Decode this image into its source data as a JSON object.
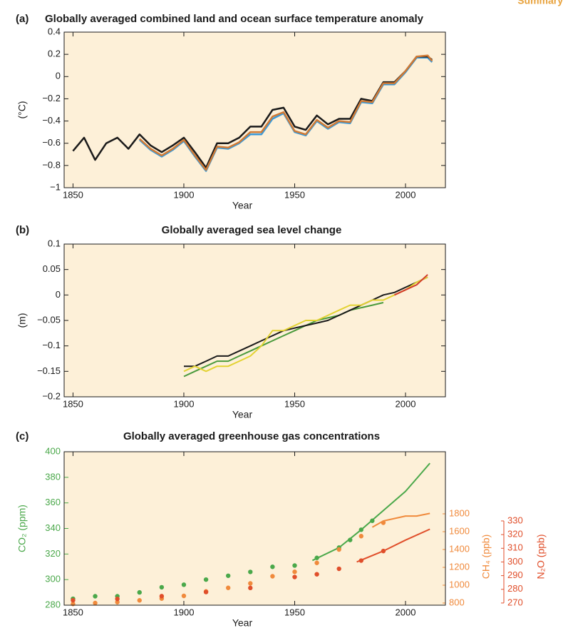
{
  "section_label": "Summary",
  "chart_data": [
    {
      "type": "line",
      "panel_label": "(a)",
      "title": "Globally averaged combined land and ocean surface temperature anomaly",
      "x_label": "Year",
      "y_label": "(°C)",
      "xlim": [
        1846,
        2018
      ],
      "xticks": [
        1850,
        1900,
        1950,
        2000
      ],
      "ylim": [
        -1,
        0.4
      ],
      "yticks": [
        {
          "value": -1,
          "label": "−1"
        },
        {
          "value": -0.8,
          "label": "−0.8"
        },
        {
          "value": -0.6,
          "label": "−0.6"
        },
        {
          "value": -0.4,
          "label": "−0.4"
        },
        {
          "value": -0.2,
          "label": "−0.2"
        },
        0,
        0.2,
        0.4
      ],
      "x": [
        1850,
        1855,
        1860,
        1865,
        1870,
        1875,
        1880,
        1885,
        1890,
        1895,
        1900,
        1905,
        1910,
        1915,
        1920,
        1925,
        1930,
        1935,
        1940,
        1945,
        1950,
        1955,
        1960,
        1965,
        1970,
        1975,
        1980,
        1985,
        1990,
        1995,
        2000,
        2005,
        2010,
        2012
      ],
      "series": [
        {
          "color": "#3a9ad9",
          "values": [
            null,
            null,
            null,
            null,
            null,
            null,
            -0.57,
            -0.66,
            -0.72,
            -0.66,
            -0.58,
            -0.72,
            -0.85,
            -0.64,
            -0.65,
            -0.6,
            -0.52,
            -0.52,
            -0.38,
            -0.33,
            -0.5,
            -0.53,
            -0.4,
            -0.47,
            -0.41,
            -0.42,
            -0.23,
            -0.24,
            -0.07,
            -0.07,
            0.04,
            0.17,
            0.17,
            0.13
          ]
        },
        {
          "color": "#1a1a1a",
          "values": [
            -0.67,
            -0.55,
            -0.75,
            -0.6,
            -0.55,
            -0.65,
            -0.52,
            -0.62,
            -0.68,
            -0.62,
            -0.55,
            -0.68,
            -0.82,
            -0.6,
            -0.6,
            -0.55,
            -0.45,
            -0.45,
            -0.3,
            -0.28,
            -0.45,
            -0.48,
            -0.35,
            -0.43,
            -0.38,
            -0.38,
            -0.2,
            -0.22,
            -0.05,
            -0.05,
            0.05,
            0.18,
            0.18,
            0.15
          ]
        },
        {
          "color": "#d07a35",
          "values": [
            null,
            null,
            null,
            null,
            null,
            null,
            -0.56,
            -0.65,
            -0.71,
            -0.65,
            -0.57,
            -0.71,
            -0.84,
            -0.63,
            -0.64,
            -0.59,
            -0.5,
            -0.5,
            -0.36,
            -0.32,
            -0.49,
            -0.52,
            -0.39,
            -0.46,
            -0.4,
            -0.41,
            -0.22,
            -0.23,
            -0.06,
            -0.06,
            0.05,
            0.18,
            0.19,
            0.14
          ]
        }
      ]
    },
    {
      "type": "line",
      "panel_label": "(b)",
      "title": "Globally averaged sea level change",
      "x_label": "Year",
      "y_label": "(m)",
      "xlim": [
        1846,
        2018
      ],
      "xticks": [
        1850,
        1900,
        1950,
        2000
      ],
      "ylim": [
        -0.2,
        0.1
      ],
      "yticks": [
        {
          "value": -0.2,
          "label": "−0.2"
        },
        {
          "value": -0.15,
          "label": "−0.15"
        },
        {
          "value": -0.1,
          "label": "−0.1"
        },
        {
          "value": -0.05,
          "label": "−0.05"
        },
        0,
        0.05,
        0.1
      ],
      "x": [
        1900,
        1905,
        1910,
        1915,
        1920,
        1925,
        1930,
        1935,
        1940,
        1945,
        1950,
        1955,
        1960,
        1965,
        1970,
        1975,
        1980,
        1985,
        1990,
        1995,
        2000,
        2005,
        2010
      ],
      "series": [
        {
          "color": "#4a9a3c",
          "values": [
            -0.16,
            -0.15,
            -0.14,
            -0.13,
            -0.13,
            -0.12,
            -0.11,
            -0.1,
            -0.09,
            -0.08,
            -0.07,
            -0.06,
            -0.05,
            -0.045,
            -0.04,
            -0.03,
            -0.025,
            -0.02,
            -0.015,
            null,
            null,
            null,
            null
          ]
        },
        {
          "color": "#1a1a1a",
          "values": [
            -0.14,
            -0.14,
            -0.13,
            -0.12,
            -0.12,
            -0.11,
            -0.1,
            -0.09,
            -0.08,
            -0.07,
            -0.065,
            -0.06,
            -0.055,
            -0.05,
            -0.04,
            -0.03,
            -0.02,
            -0.01,
            0,
            0.005,
            0.015,
            0.025,
            0.035
          ]
        },
        {
          "color": "#e3d232",
          "values": [
            -0.15,
            -0.14,
            -0.15,
            -0.14,
            -0.14,
            -0.13,
            -0.12,
            -0.1,
            -0.07,
            -0.07,
            -0.06,
            -0.05,
            -0.05,
            -0.04,
            -0.03,
            -0.02,
            -0.02,
            -0.01,
            -0.01,
            0,
            0.01,
            0.025,
            0.035
          ]
        },
        {
          "color": "#d23a2a",
          "values": [
            null,
            null,
            null,
            null,
            null,
            null,
            null,
            null,
            null,
            null,
            null,
            null,
            null,
            null,
            null,
            null,
            null,
            null,
            null,
            0,
            0.01,
            0.02,
            0.04
          ]
        }
      ]
    },
    {
      "type": "line",
      "panel_label": "(c)",
      "title": "Globally averaged greenhouse gas concentrations",
      "x_label": "Year",
      "y_label": "CO₂ (ppm)",
      "y2_label": "CH₄ (ppb)",
      "y3_label": "N₂O (ppb)",
      "xlim": [
        1846,
        2018
      ],
      "xticks": [
        1850,
        1900,
        1950,
        2000
      ],
      "ylim": [
        280,
        400
      ],
      "yticks": [
        280,
        300,
        320,
        340,
        360,
        380,
        400
      ],
      "ycolor": "#4aa84a",
      "y2lim": [
        776,
        2496
      ],
      "y2ticks": [
        800,
        1000,
        1200,
        1400,
        1600,
        1800
      ],
      "y2color": "#f08a3c",
      "y3lim": [
        268.4,
        380.6
      ],
      "y3ticks": [
        270,
        280,
        290,
        300,
        310,
        320,
        330
      ],
      "y3color": "#e04e2a",
      "series": [
        {
          "marker": "dot",
          "color": "#4aa84a",
          "x": [
            1850,
            1860,
            1870,
            1880,
            1890,
            1900,
            1910,
            1920,
            1930,
            1940,
            1950,
            1960,
            1970,
            1975,
            1980,
            1985
          ],
          "values": [
            285,
            287,
            287,
            290,
            294,
            296,
            300,
            303,
            306,
            310,
            311,
            317,
            325,
            331,
            339,
            346
          ]
        },
        {
          "marker": "line",
          "color": "#4aa84a",
          "x": [
            1958,
            1970,
            1980,
            1990,
            2000,
            2005,
            2011
          ],
          "values": [
            315,
            325,
            339,
            354,
            369,
            379,
            391
          ]
        },
        {
          "marker": "dot",
          "axis": "y2",
          "color": "#f08a3c",
          "x": [
            1850,
            1860,
            1870,
            1880,
            1890,
            1900,
            1910,
            1920,
            1930,
            1940,
            1950,
            1960,
            1970,
            1980,
            1990
          ],
          "values": [
            790,
            800,
            810,
            830,
            850,
            880,
            930,
            970,
            1020,
            1100,
            1150,
            1250,
            1400,
            1550,
            1700
          ]
        },
        {
          "marker": "line",
          "axis": "y2",
          "color": "#f08a3c",
          "x": [
            1985,
            1990,
            2000,
            2005,
            2011
          ],
          "values": [
            1650,
            1720,
            1775,
            1775,
            1805
          ]
        },
        {
          "marker": "dot",
          "axis": "y3",
          "color": "#e04e2a",
          "x": [
            1850,
            1870,
            1890,
            1910,
            1930,
            1950,
            1960,
            1970,
            1980,
            1990
          ],
          "values": [
            272,
            273,
            275,
            278,
            281,
            289,
            291,
            295,
            301,
            308
          ]
        },
        {
          "marker": "line",
          "axis": "y3",
          "color": "#e04e2a",
          "x": [
            1978,
            1990,
            2000,
            2011
          ],
          "values": [
            300,
            308,
            316,
            324
          ]
        }
      ]
    }
  ]
}
